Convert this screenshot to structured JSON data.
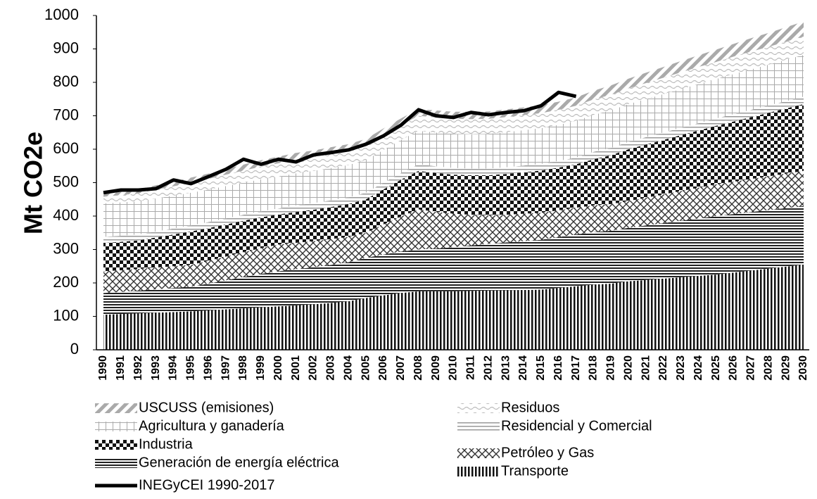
{
  "chart_data": {
    "type": "stacked_area",
    "y_label": "Mt CO2e",
    "categories": [
      "1990",
      "1991",
      "1992",
      "1993",
      "1994",
      "1995",
      "1996",
      "1997",
      "1998",
      "1999",
      "2000",
      "2001",
      "2002",
      "2003",
      "2004",
      "2005",
      "2006",
      "2007",
      "2008",
      "2009",
      "2010",
      "2011",
      "2012",
      "2013",
      "2014",
      "2015",
      "2016",
      "2017",
      "2018",
      "2019",
      "2020",
      "2021",
      "2022",
      "2023",
      "2024",
      "2025",
      "2026",
      "2027",
      "2028",
      "2029",
      "2030"
    ],
    "ylim": [
      0,
      1000
    ],
    "yticks": [
      0,
      100,
      200,
      300,
      400,
      500,
      600,
      700,
      800,
      900,
      1000
    ],
    "series": [
      {
        "name": "Transporte",
        "values": [
          105,
          107,
          109,
          111,
          113,
          115,
          118,
          121,
          124,
          127,
          130,
          133,
          136,
          140,
          145,
          155,
          163,
          170,
          175,
          175,
          175,
          176,
          177,
          178,
          179,
          180,
          185,
          190,
          195,
          198,
          205,
          209,
          213,
          217,
          221,
          225,
          231,
          237,
          243,
          249,
          255
        ]
      },
      {
        "name": "Generación de energía eléctrica",
        "values": [
          65,
          66,
          68,
          70,
          72,
          74,
          80,
          87,
          94,
          100,
          105,
          108,
          111,
          114,
          117,
          120,
          122,
          124,
          125,
          128,
          132,
          136,
          140,
          143,
          146,
          149,
          152,
          155,
          157,
          158,
          160,
          163,
          166,
          169,
          172,
          175,
          175,
          175,
          175,
          175,
          175
        ]
      },
      {
        "name": "Petróleo y Gas",
        "values": [
          65,
          65,
          65,
          65,
          65,
          65,
          68,
          71,
          74,
          77,
          80,
          79,
          78,
          77,
          76,
          75,
          90,
          105,
          120,
          110,
          100,
          92,
          85,
          83,
          82,
          81,
          80,
          80,
          80,
          80,
          80,
          83,
          86,
          89,
          92,
          95,
          97,
          99,
          101,
          103,
          105
        ]
      },
      {
        "name": "Industria",
        "values": [
          85,
          85,
          85,
          90,
          95,
          100,
          98,
          96,
          94,
          92,
          90,
          92,
          94,
          96,
          98,
          100,
          105,
          110,
          115,
          116,
          117,
          118,
          120,
          122,
          124,
          126,
          128,
          130,
          138,
          146,
          155,
          159,
          163,
          167,
          171,
          175,
          180,
          185,
          190,
          195,
          200
        ]
      },
      {
        "name": "Residencial y Comercial",
        "values": [
          18,
          18,
          18,
          18,
          18,
          18,
          18,
          18,
          18,
          18,
          18,
          20,
          20,
          20,
          20,
          20,
          20,
          20,
          20,
          20,
          20,
          20,
          20,
          20,
          20,
          20,
          20,
          20,
          22,
          22,
          22,
          22,
          22,
          22,
          22,
          22,
          22,
          22,
          22,
          22,
          22
        ]
      },
      {
        "name": "Agricultura y ganadería",
        "values": [
          100,
          100,
          99,
          99,
          98,
          98,
          97,
          97,
          96,
          96,
          95,
          96,
          96,
          97,
          97,
          98,
          98,
          99,
          100,
          101,
          102,
          103,
          104,
          105,
          106,
          107,
          108,
          110,
          111,
          112,
          113,
          114,
          115,
          116,
          117,
          118,
          120,
          121,
          122,
          124,
          125
        ]
      },
      {
        "name": "Residuos",
        "values": [
          20,
          22,
          24,
          26,
          28,
          30,
          32,
          34,
          36,
          38,
          40,
          41,
          41,
          42,
          42,
          43,
          44,
          44,
          45,
          45,
          45,
          45,
          45,
          45,
          45,
          45,
          45,
          45,
          46,
          47,
          47,
          48,
          49,
          50,
          51,
          51,
          52,
          53,
          53,
          54,
          55
        ]
      },
      {
        "name": "USCUSS (emisiones)",
        "values": [
          10,
          11,
          12,
          13,
          14,
          15,
          16,
          17,
          18,
          19,
          20,
          20,
          20,
          20,
          20,
          20,
          20,
          20,
          20,
          21,
          21,
          22,
          22,
          23,
          23,
          24,
          24,
          25,
          26,
          28,
          29,
          31,
          32,
          34,
          35,
          37,
          38,
          40,
          42,
          43,
          45
        ]
      }
    ],
    "line": {
      "name": "INEGyCEI 1990-2017",
      "color": "#000000",
      "values": [
        470,
        478,
        478,
        482,
        508,
        497,
        518,
        540,
        570,
        555,
        570,
        562,
        583,
        590,
        598,
        615,
        640,
        672,
        718,
        700,
        695,
        710,
        703,
        710,
        715,
        730,
        770,
        758,
        null,
        null,
        null,
        null,
        null,
        null,
        null,
        null,
        null,
        null,
        null,
        null,
        null
      ]
    }
  }
}
